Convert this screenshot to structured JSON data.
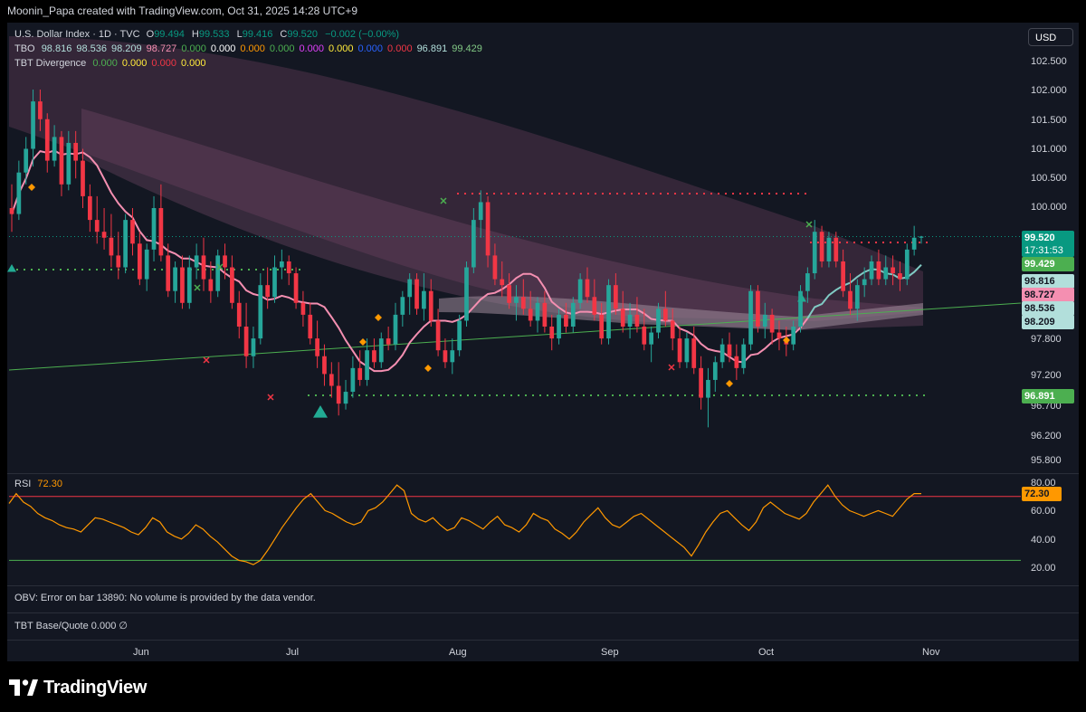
{
  "header": {
    "attribution": "Moonin_Papa created with TradingView.com, Oct 31, 2025 14:28 UTC+9"
  },
  "symbol": {
    "title": "U.S. Dollar Index · 1D · TVC",
    "o_label": "O",
    "o": "99.494",
    "h_label": "H",
    "h": "99.533",
    "l_label": "L",
    "l": "99.416",
    "c_label": "C",
    "c": "99.520",
    "change": "−0.002 (−0.00%)"
  },
  "indicators": {
    "tbo": {
      "name": "TBO",
      "values": [
        {
          "v": "98.816",
          "color": "#b2dfdb"
        },
        {
          "v": "98.536",
          "color": "#b2dfdb"
        },
        {
          "v": "98.209",
          "color": "#b2dfdb"
        },
        {
          "v": "98.727",
          "color": "#f48fb1"
        },
        {
          "v": "0.000",
          "color": "#4caf50"
        },
        {
          "v": "0.000",
          "color": "#ffffff"
        },
        {
          "v": "0.000",
          "color": "#ff9800"
        },
        {
          "v": "0.000",
          "color": "#4caf50"
        },
        {
          "v": "0.000",
          "color": "#e040fb"
        },
        {
          "v": "0.000",
          "color": "#ffeb3b"
        },
        {
          "v": "0.000",
          "color": "#2962ff"
        },
        {
          "v": "0.000",
          "color": "#f23645"
        },
        {
          "v": "96.891",
          "color": "#b2dfdb"
        },
        {
          "v": "99.429",
          "color": "#81c784"
        }
      ]
    },
    "tbt_div": {
      "name": "TBT Divergence",
      "values": [
        {
          "v": "0.000",
          "color": "#4caf50"
        },
        {
          "v": "0.000",
          "color": "#ffeb3b"
        },
        {
          "v": "0.000",
          "color": "#f23645"
        },
        {
          "v": "0.000",
          "color": "#ffeb3b"
        }
      ]
    }
  },
  "currency_button": "USD",
  "price_axis": {
    "ticks": [
      "102.500",
      "102.000",
      "101.500",
      "101.000",
      "100.500",
      "100.000",
      "97.800",
      "97.200",
      "96.700",
      "96.200",
      "95.800"
    ]
  },
  "price_tags": {
    "last": {
      "price": "99.520",
      "countdown": "17:31:53",
      "color": "#089981"
    },
    "t1": {
      "v": "99.429",
      "color": "#4caf50"
    },
    "t2": {
      "v": "98.816",
      "color": "#b2dfdb"
    },
    "t3": {
      "v": "98.727",
      "color": "#f48fb1"
    },
    "t4": {
      "v": "98.536",
      "color": "#b2dfdb"
    },
    "t5": {
      "v": "98.209",
      "color": "#b2dfdb"
    },
    "t6": {
      "v": "96.891",
      "color": "#4caf50"
    }
  },
  "rsi": {
    "label": "RSI",
    "value": "72.30",
    "ticks": [
      "80.00",
      "60.00",
      "40.00",
      "20.00"
    ],
    "value_color": "#ff9800"
  },
  "obv": {
    "message": "OBV: Error on bar 13890: No volume is provided by the data vendor."
  },
  "tbt_bq": {
    "label": "TBT Base/Quote",
    "value": "0.000",
    "extra": "∅"
  },
  "months": [
    "Jun",
    "Jul",
    "Aug",
    "Sep",
    "Oct",
    "Nov"
  ],
  "brand": {
    "name": "TradingView"
  },
  "chart_data": {
    "type": "candlestick",
    "symbol": "U.S. Dollar Index",
    "timeframe": "1D",
    "ylim": [
      95.8,
      102.6
    ],
    "colors": {
      "up": "#26a69a",
      "down": "#f23645"
    },
    "ohlc": [
      [
        100.0,
        100.4,
        99.6,
        99.9
      ],
      [
        99.9,
        100.8,
        99.8,
        100.6
      ],
      [
        100.6,
        101.2,
        100.4,
        101.0
      ],
      [
        101.0,
        102.0,
        100.7,
        101.8
      ],
      [
        101.8,
        102.0,
        101.3,
        101.5
      ],
      [
        101.5,
        101.6,
        100.6,
        100.8
      ],
      [
        100.8,
        101.4,
        100.7,
        101.2
      ],
      [
        101.2,
        101.3,
        100.2,
        100.4
      ],
      [
        100.4,
        101.3,
        100.3,
        101.1
      ],
      [
        101.1,
        101.3,
        100.5,
        100.8
      ],
      [
        100.8,
        101.0,
        100.0,
        100.2
      ],
      [
        100.2,
        100.4,
        99.6,
        99.8
      ],
      [
        99.8,
        100.2,
        99.4,
        99.6
      ],
      [
        99.6,
        100.0,
        99.3,
        99.5
      ],
      [
        99.5,
        99.9,
        99.0,
        99.2
      ],
      [
        99.2,
        99.6,
        98.8,
        99.0
      ],
      [
        99.0,
        99.9,
        98.9,
        99.8
      ],
      [
        99.8,
        100.0,
        99.2,
        99.4
      ],
      [
        99.4,
        99.6,
        98.7,
        98.8
      ],
      [
        98.8,
        99.4,
        98.6,
        99.3
      ],
      [
        99.3,
        100.2,
        99.1,
        100.0
      ],
      [
        100.0,
        100.4,
        99.1,
        99.2
      ],
      [
        99.2,
        99.4,
        98.5,
        98.6
      ],
      [
        98.6,
        99.1,
        98.4,
        99.0
      ],
      [
        99.0,
        99.2,
        98.3,
        98.4
      ],
      [
        98.4,
        99.2,
        98.3,
        99.0
      ],
      [
        99.0,
        99.4,
        98.8,
        99.2
      ],
      [
        99.2,
        99.5,
        98.6,
        98.8
      ],
      [
        98.8,
        99.1,
        98.4,
        98.6
      ],
      [
        98.6,
        99.3,
        98.5,
        99.2
      ],
      [
        99.2,
        99.4,
        98.8,
        99.0
      ],
      [
        99.0,
        99.2,
        98.3,
        98.4
      ],
      [
        98.4,
        98.6,
        97.8,
        98.0
      ],
      [
        98.0,
        98.4,
        97.3,
        97.5
      ],
      [
        97.5,
        98.0,
        97.3,
        97.8
      ],
      [
        97.8,
        98.9,
        97.7,
        98.7
      ],
      [
        98.7,
        99.0,
        98.3,
        98.5
      ],
      [
        98.5,
        99.2,
        98.4,
        99.0
      ],
      [
        99.0,
        99.3,
        98.8,
        99.1
      ],
      [
        99.1,
        99.2,
        98.7,
        98.9
      ],
      [
        98.9,
        99.0,
        98.3,
        98.4
      ],
      [
        98.4,
        98.6,
        98.0,
        98.2
      ],
      [
        98.2,
        98.4,
        97.7,
        97.8
      ],
      [
        97.8,
        98.1,
        97.3,
        97.5
      ],
      [
        97.5,
        97.7,
        97.0,
        97.2
      ],
      [
        97.2,
        97.4,
        96.8,
        97.0
      ],
      [
        97.0,
        97.4,
        96.5,
        96.7
      ],
      [
        96.7,
        97.1,
        96.6,
        96.9
      ],
      [
        96.9,
        97.5,
        96.8,
        97.3
      ],
      [
        97.3,
        97.6,
        97.0,
        97.1
      ],
      [
        97.1,
        97.8,
        97.0,
        97.6
      ],
      [
        97.6,
        97.8,
        97.3,
        97.4
      ],
      [
        97.4,
        97.9,
        97.3,
        97.8
      ],
      [
        97.8,
        98.0,
        97.6,
        97.7
      ],
      [
        97.7,
        98.4,
        97.6,
        98.2
      ],
      [
        98.2,
        98.6,
        98.0,
        98.5
      ],
      [
        98.5,
        98.9,
        98.2,
        98.8
      ],
      [
        98.8,
        98.9,
        98.2,
        98.3
      ],
      [
        98.3,
        98.9,
        98.1,
        98.6
      ],
      [
        98.6,
        98.8,
        98.0,
        98.1
      ],
      [
        98.1,
        98.3,
        97.5,
        97.6
      ],
      [
        97.6,
        97.8,
        97.3,
        97.4
      ],
      [
        97.4,
        97.8,
        97.2,
        97.6
      ],
      [
        97.6,
        98.2,
        97.5,
        98.1
      ],
      [
        98.1,
        99.1,
        98.0,
        99.0
      ],
      [
        99.0,
        100.0,
        98.9,
        99.8
      ],
      [
        99.8,
        100.3,
        99.5,
        100.1
      ],
      [
        100.1,
        100.2,
        99.0,
        99.2
      ],
      [
        99.2,
        99.4,
        98.7,
        98.8
      ],
      [
        98.8,
        99.1,
        98.5,
        98.7
      ],
      [
        98.7,
        98.9,
        98.3,
        98.4
      ],
      [
        98.4,
        98.7,
        98.1,
        98.5
      ],
      [
        98.5,
        98.8,
        98.2,
        98.3
      ],
      [
        98.3,
        98.6,
        98.0,
        98.1
      ],
      [
        98.1,
        98.5,
        97.9,
        98.4
      ],
      [
        98.4,
        98.6,
        97.9,
        98.0
      ],
      [
        98.0,
        98.2,
        97.6,
        97.8
      ],
      [
        97.8,
        98.3,
        97.7,
        98.2
      ],
      [
        98.2,
        98.4,
        97.9,
        98.0
      ],
      [
        98.0,
        98.5,
        97.9,
        98.4
      ],
      [
        98.4,
        98.9,
        98.3,
        98.8
      ],
      [
        98.8,
        99.0,
        98.4,
        98.5
      ],
      [
        98.5,
        98.8,
        98.1,
        98.2
      ],
      [
        98.2,
        98.4,
        97.7,
        97.8
      ],
      [
        97.8,
        98.8,
        97.7,
        98.7
      ],
      [
        98.7,
        98.9,
        98.2,
        98.3
      ],
      [
        98.3,
        98.6,
        97.9,
        98.0
      ],
      [
        98.0,
        98.4,
        97.8,
        98.2
      ],
      [
        98.2,
        98.5,
        97.9,
        98.0
      ],
      [
        98.0,
        98.3,
        97.6,
        97.7
      ],
      [
        97.7,
        98.0,
        97.4,
        97.9
      ],
      [
        97.9,
        98.4,
        97.8,
        98.3
      ],
      [
        98.3,
        98.6,
        98.0,
        98.1
      ],
      [
        98.1,
        98.3,
        97.6,
        97.8
      ],
      [
        97.8,
        98.0,
        97.3,
        97.4
      ],
      [
        97.4,
        97.9,
        97.3,
        97.8
      ],
      [
        97.8,
        98.0,
        97.2,
        97.3
      ],
      [
        97.3,
        97.5,
        96.6,
        96.8
      ],
      [
        96.8,
        97.3,
        96.3,
        97.1
      ],
      [
        97.1,
        97.5,
        96.9,
        97.4
      ],
      [
        97.4,
        97.8,
        97.3,
        97.7
      ],
      [
        97.7,
        97.9,
        97.4,
        97.5
      ],
      [
        97.5,
        97.7,
        97.1,
        97.3
      ],
      [
        97.3,
        97.8,
        97.2,
        97.7
      ],
      [
        97.7,
        98.7,
        97.6,
        98.6
      ],
      [
        98.6,
        98.7,
        97.9,
        98.0
      ],
      [
        98.0,
        98.4,
        97.8,
        98.2
      ],
      [
        98.2,
        98.3,
        97.7,
        97.9
      ],
      [
        97.9,
        98.1,
        97.6,
        97.8
      ],
      [
        97.8,
        98.0,
        97.5,
        97.7
      ],
      [
        97.7,
        98.1,
        97.6,
        98.0
      ],
      [
        98.0,
        98.7,
        97.9,
        98.6
      ],
      [
        98.6,
        99.0,
        98.4,
        98.9
      ],
      [
        98.9,
        99.8,
        98.8,
        99.6
      ],
      [
        99.6,
        99.7,
        99.0,
        99.1
      ],
      [
        99.1,
        99.6,
        99.0,
        99.5
      ],
      [
        99.5,
        99.6,
        99.0,
        99.1
      ],
      [
        99.1,
        99.3,
        98.5,
        98.6
      ],
      [
        98.6,
        98.9,
        98.2,
        98.3
      ],
      [
        98.3,
        98.8,
        98.1,
        98.7
      ],
      [
        98.7,
        99.0,
        98.5,
        98.8
      ],
      [
        98.8,
        99.2,
        98.7,
        99.1
      ],
      [
        99.1,
        99.3,
        98.7,
        98.8
      ],
      [
        98.8,
        99.2,
        98.7,
        99.0
      ],
      [
        99.0,
        99.2,
        98.7,
        98.9
      ],
      [
        98.9,
        99.1,
        98.6,
        98.8
      ],
      [
        98.8,
        99.4,
        98.7,
        99.3
      ],
      [
        99.3,
        99.7,
        99.2,
        99.5
      ],
      [
        99.5,
        99.53,
        99.4,
        99.52
      ]
    ],
    "rsi_values": [
      65,
      72,
      66,
      63,
      58,
      55,
      53,
      50,
      48,
      47,
      45,
      50,
      55,
      54,
      52,
      50,
      48,
      45,
      43,
      48,
      55,
      52,
      45,
      42,
      40,
      44,
      50,
      47,
      42,
      38,
      33,
      28,
      25,
      24,
      22,
      25,
      32,
      40,
      48,
      55,
      62,
      68,
      72,
      66,
      60,
      58,
      55,
      52,
      50,
      52,
      60,
      62,
      66,
      72,
      78,
      74,
      58,
      54,
      52,
      55,
      50,
      46,
      48,
      55,
      53,
      50,
      47,
      52,
      56,
      50,
      48,
      45,
      50,
      58,
      55,
      53,
      47,
      44,
      40,
      45,
      52,
      57,
      62,
      55,
      50,
      48,
      52,
      56,
      58,
      54,
      50,
      46,
      42,
      38,
      34,
      28,
      36,
      45,
      52,
      58,
      60,
      55,
      50,
      46,
      52,
      62,
      66,
      62,
      58,
      56,
      54,
      58,
      66,
      72,
      78,
      70,
      64,
      60,
      58,
      56,
      58,
      60,
      58,
      56,
      62,
      68,
      72,
      72
    ],
    "rsi_levels": [
      70,
      25
    ]
  }
}
